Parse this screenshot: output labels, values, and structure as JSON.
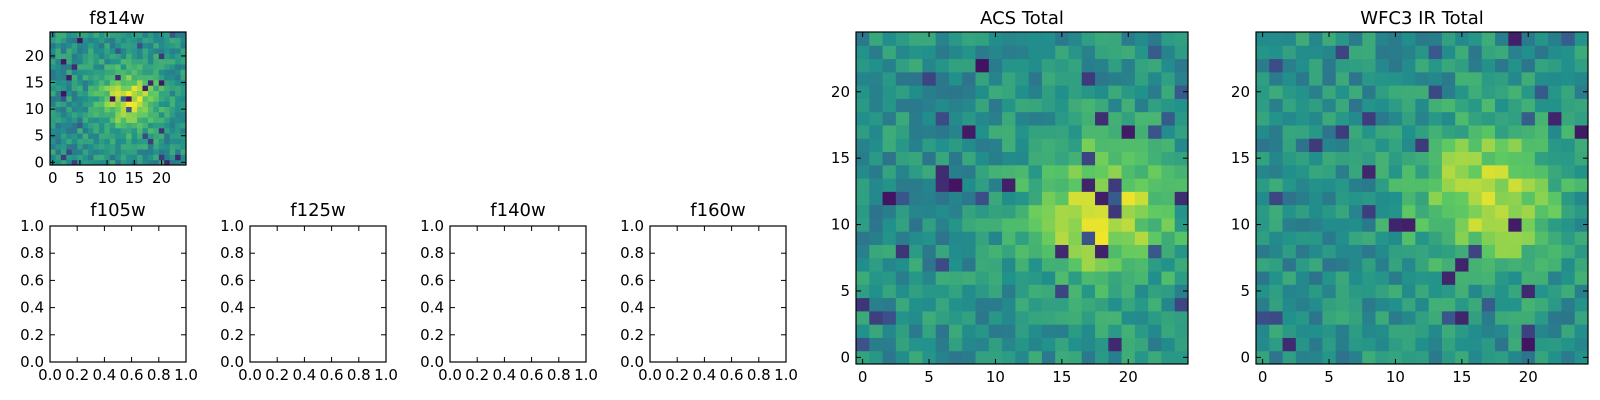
{
  "figure": {
    "colormap": "viridis",
    "colormap_stops": [
      "#440154",
      "#3b528b",
      "#21918c",
      "#5ec962",
      "#fde725"
    ]
  },
  "chart_data": [
    {
      "type": "heatmap",
      "title": "f814w",
      "grid_size": 25,
      "xticks": [
        "0",
        "5",
        "10",
        "15",
        "20"
      ],
      "yticks": [
        "0",
        "5",
        "10",
        "15",
        "20"
      ],
      "xlim": [
        -0.5,
        24.5
      ],
      "ylim": [
        -0.5,
        24.5
      ],
      "bright_region": {
        "x_center": 14,
        "y_center": 12,
        "description": "brighter blob near the center-right"
      },
      "values_note": "noisy pixel intensities"
    },
    {
      "type": "empty",
      "title": "f105w",
      "xticks": [
        "0.0",
        "0.2",
        "0.4",
        "0.6",
        "0.8",
        "1.0"
      ],
      "yticks": [
        "0.0",
        "0.2",
        "0.4",
        "0.6",
        "0.8",
        "1.0"
      ],
      "xlim": [
        0,
        1
      ],
      "ylim": [
        0,
        1
      ]
    },
    {
      "type": "empty",
      "title": "f125w",
      "xticks": [
        "0.0",
        "0.2",
        "0.4",
        "0.6",
        "0.8",
        "1.0"
      ],
      "yticks": [
        "0.0",
        "0.2",
        "0.4",
        "0.6",
        "0.8",
        "1.0"
      ],
      "xlim": [
        0,
        1
      ],
      "ylim": [
        0,
        1
      ]
    },
    {
      "type": "empty",
      "title": "f140w",
      "xticks": [
        "0.0",
        "0.2",
        "0.4",
        "0.6",
        "0.8",
        "1.0"
      ],
      "yticks": [
        "0.0",
        "0.2",
        "0.4",
        "0.6",
        "0.8",
        "1.0"
      ],
      "xlim": [
        0,
        1
      ],
      "ylim": [
        0,
        1
      ]
    },
    {
      "type": "empty",
      "title": "f160w",
      "xticks": [
        "0.0",
        "0.2",
        "0.4",
        "0.6",
        "0.8",
        "1.0"
      ],
      "yticks": [
        "0.0",
        "0.2",
        "0.4",
        "0.6",
        "0.8",
        "1.0"
      ],
      "xlim": [
        0,
        1
      ],
      "ylim": [
        0,
        1
      ]
    },
    {
      "type": "heatmap",
      "title": "ACS Total",
      "grid_size": 25,
      "xticks": [
        "0",
        "5",
        "10",
        "15",
        "20"
      ],
      "yticks": [
        "0",
        "5",
        "10",
        "15",
        "20"
      ],
      "xlim": [
        -0.5,
        24.5
      ],
      "ylim": [
        -0.5,
        24.5
      ],
      "bright_region": {
        "x_center": 18,
        "y_center": 11,
        "description": "bright yellow blob at center-right"
      }
    },
    {
      "type": "heatmap",
      "title": "WFC3 IR Total",
      "grid_size": 25,
      "xticks": [
        "0",
        "5",
        "10",
        "15",
        "20"
      ],
      "yticks": [
        "0",
        "5",
        "10",
        "15",
        "20"
      ],
      "xlim": [
        -0.5,
        24.5
      ],
      "ylim": [
        -0.5,
        24.5
      ],
      "bright_region": {
        "x_center": 17,
        "y_center": 12,
        "description": "bright blob at center-right"
      }
    }
  ]
}
